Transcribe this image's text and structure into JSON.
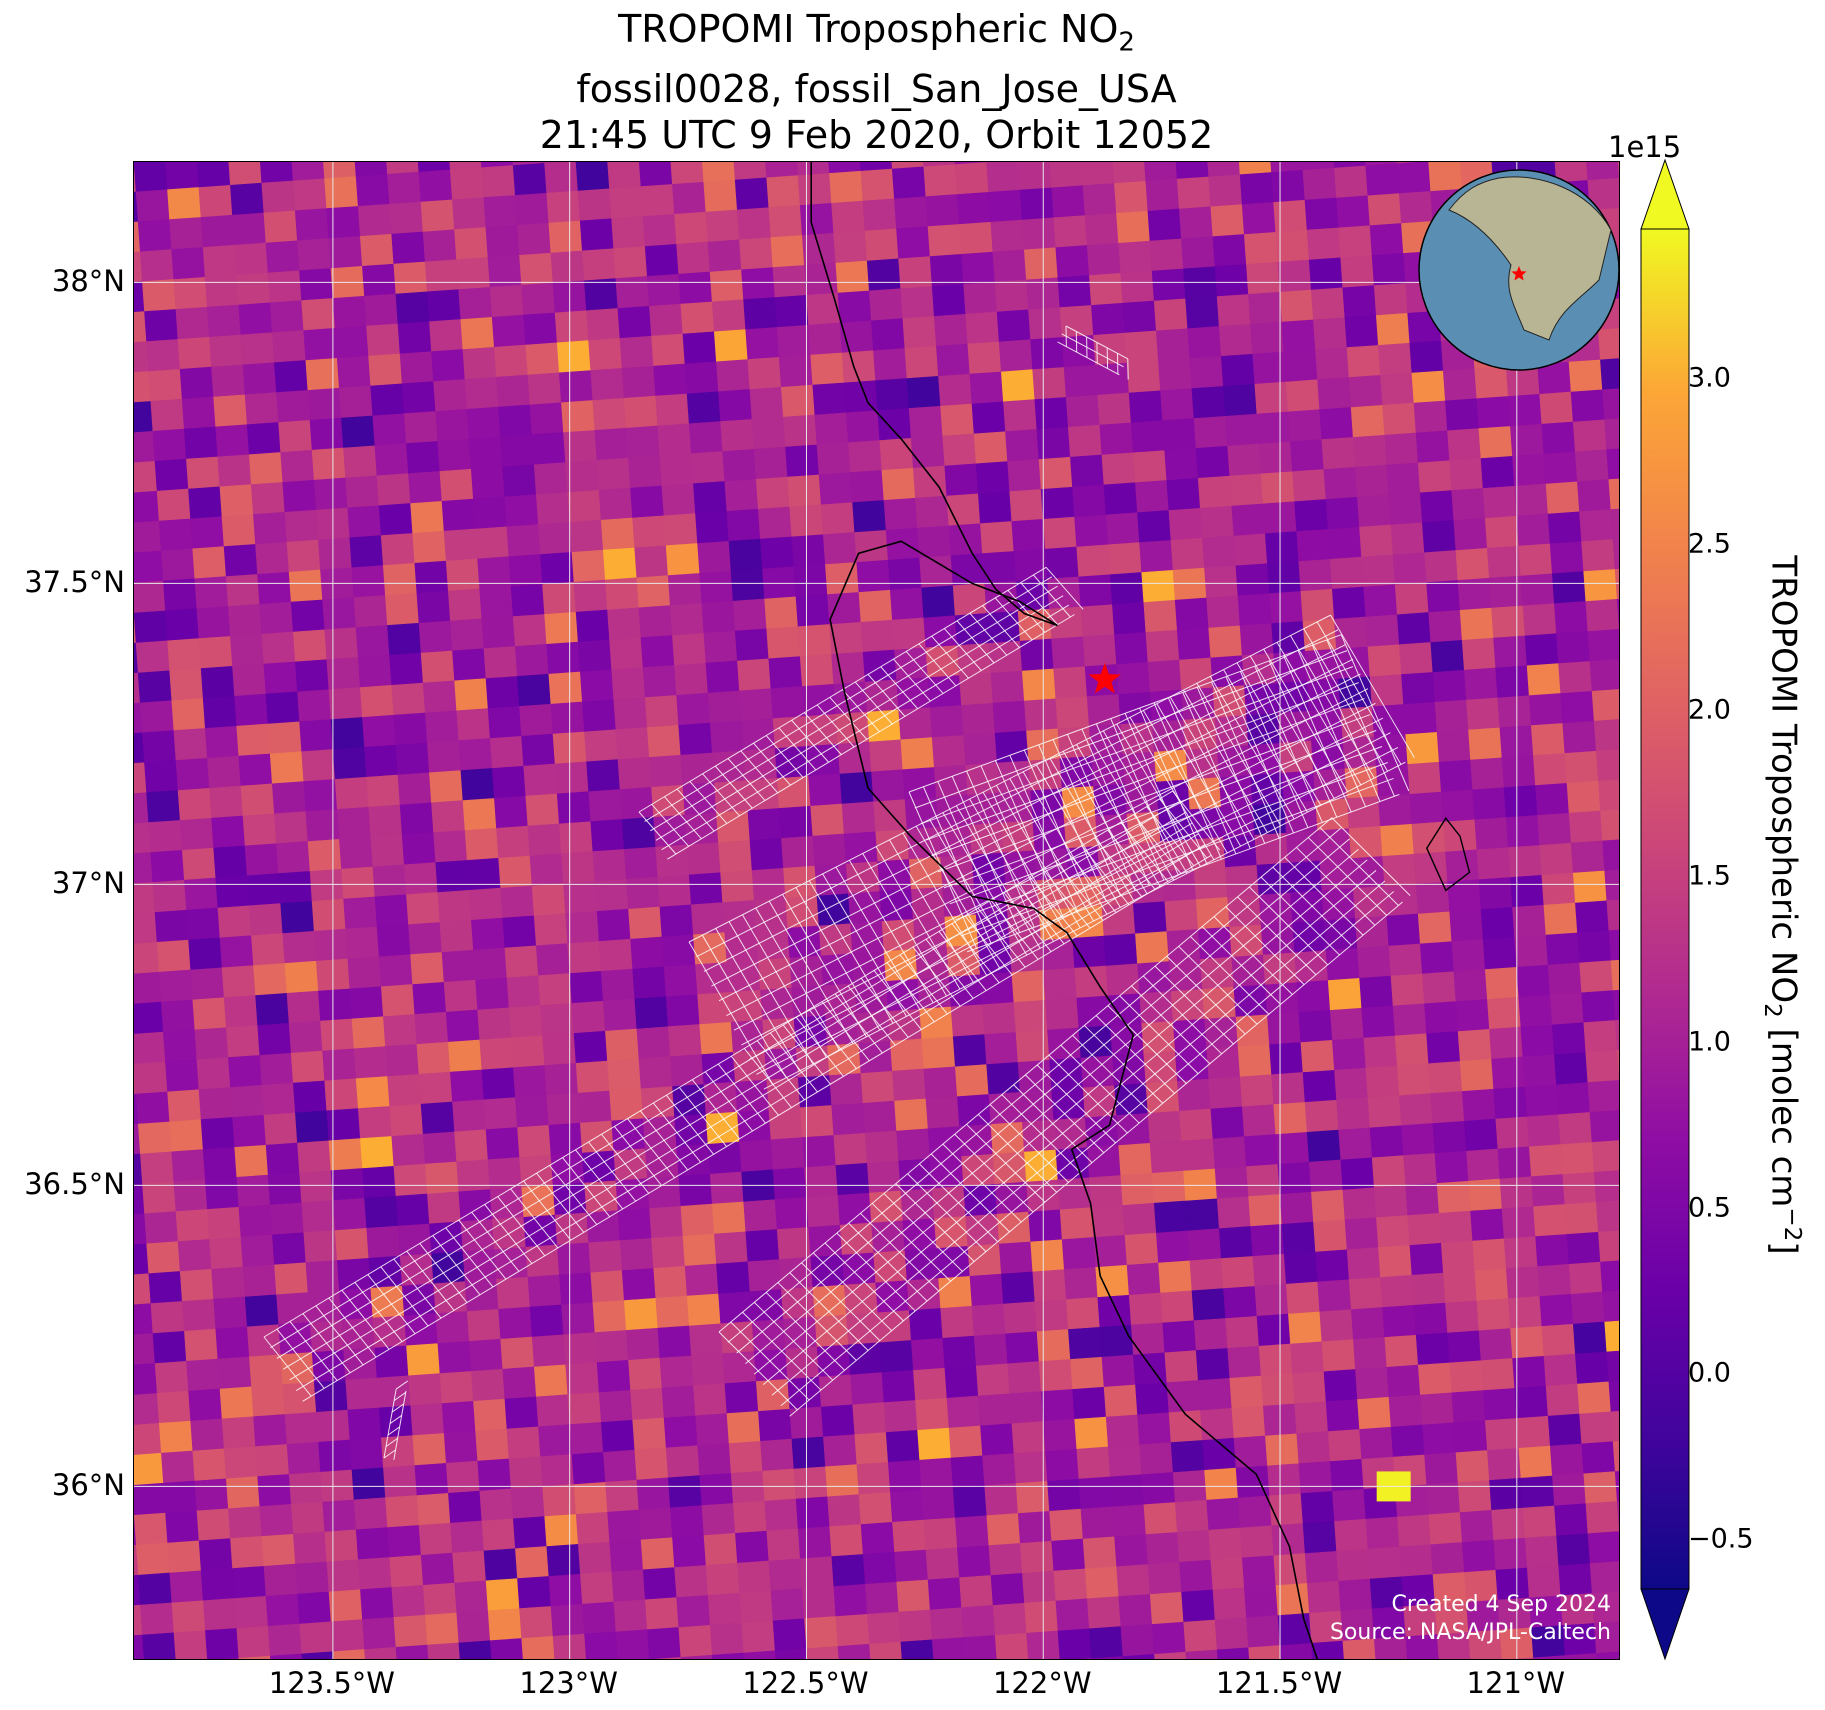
{
  "title": {
    "line1_prefix": "TROPOMI Tropospheric NO",
    "line1_sub": "2",
    "line2": "fossil0028, fossil_San_Jose_USA",
    "line3": "21:45 UTC 9 Feb 2020, Orbit 12052"
  },
  "map": {
    "projection": "lon/lat",
    "lon_range": [
      -123.92,
      -120.78
    ],
    "lat_range": [
      35.71,
      38.2
    ],
    "lon_ticks": [
      {
        "value": -123.5,
        "label": "123.5°W"
      },
      {
        "value": -123.0,
        "label": "123°W"
      },
      {
        "value": -122.5,
        "label": "122.5°W"
      },
      {
        "value": -122.0,
        "label": "122°W"
      },
      {
        "value": -121.5,
        "label": "121.5°W"
      },
      {
        "value": -121.0,
        "label": "121°W"
      }
    ],
    "lat_ticks": [
      {
        "value": 38.0,
        "label": "38°N"
      },
      {
        "value": 37.5,
        "label": "37.5°N"
      },
      {
        "value": 37.0,
        "label": "37°N"
      },
      {
        "value": 36.5,
        "label": "36.5°N"
      },
      {
        "value": 36.0,
        "label": "36°N"
      }
    ],
    "grid": true,
    "target_marker": {
      "lon": -121.87,
      "lat": 37.34,
      "symbol": "star",
      "color": "#ff0000"
    },
    "inset_globe": {
      "position": "top-right",
      "marker_color": "#ff0000"
    },
    "colormap": "plasma",
    "color_range": [
      -0.65,
      3.45
    ]
  },
  "chart_data": {
    "type": "heatmap",
    "variable": "TROPOMI Tropospheric NO2",
    "units": "molec cm^-2",
    "scale_factor": "1e15",
    "colorbar_ticks": [
      -0.5,
      0.0,
      0.5,
      1.0,
      1.5,
      2.0,
      2.5,
      3.0
    ],
    "colorbar_range": [
      -0.65,
      3.45
    ],
    "colorbar_extend": "both",
    "field_note": "Dense pixel field; typical values 0.5-2.0 with scattered high pixels 2.5-3.0 and a max of ~3.4 near 36.0°N 121.2°W"
  },
  "colorbar": {
    "exponent": "1e15",
    "tick_labels": [
      "−0.5",
      "0.0",
      "0.5",
      "1.0",
      "1.5",
      "2.0",
      "2.5",
      "3.0"
    ],
    "label_prefix": "TROPOMI Tropospheric NO",
    "label_sub": "2",
    "label_mid": " [molec cm",
    "label_sup": "−2",
    "label_suffix": "]"
  },
  "credits": {
    "created": "Created 4 Sep 2024",
    "source": "Source: NASA/JPL-Caltech"
  }
}
